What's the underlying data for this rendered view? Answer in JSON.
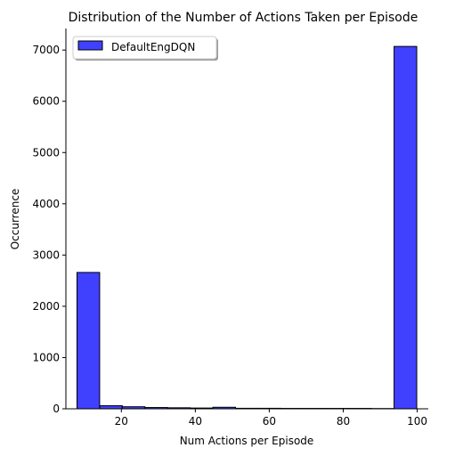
{
  "chart_data": {
    "type": "bar",
    "title": "Distribution of the Number of Actions Taken per Episode",
    "xlabel": "Num Actions per Episode",
    "ylabel": "Occurrence",
    "xlim": [
      5,
      103
    ],
    "ylim": [
      0,
      7420
    ],
    "xticks": [
      20,
      40,
      60,
      80,
      100
    ],
    "yticks": [
      0,
      1000,
      2000,
      3000,
      4000,
      5000,
      6000,
      7000
    ],
    "bin_edges": [
      8,
      14.13,
      20.25,
      26.38,
      32.5,
      38.63,
      44.75,
      50.88,
      57,
      63.13,
      69.25,
      75.38,
      81.5,
      87.63,
      93.75,
      99.88
    ],
    "series": [
      {
        "name": "DefaultEngDQN",
        "color": "#0000ff",
        "values": [
          2660,
          60,
          40,
          25,
          20,
          15,
          30,
          10,
          10,
          8,
          8,
          8,
          8,
          5,
          7070
        ]
      }
    ],
    "grid": false,
    "legend_position": "top-left"
  }
}
